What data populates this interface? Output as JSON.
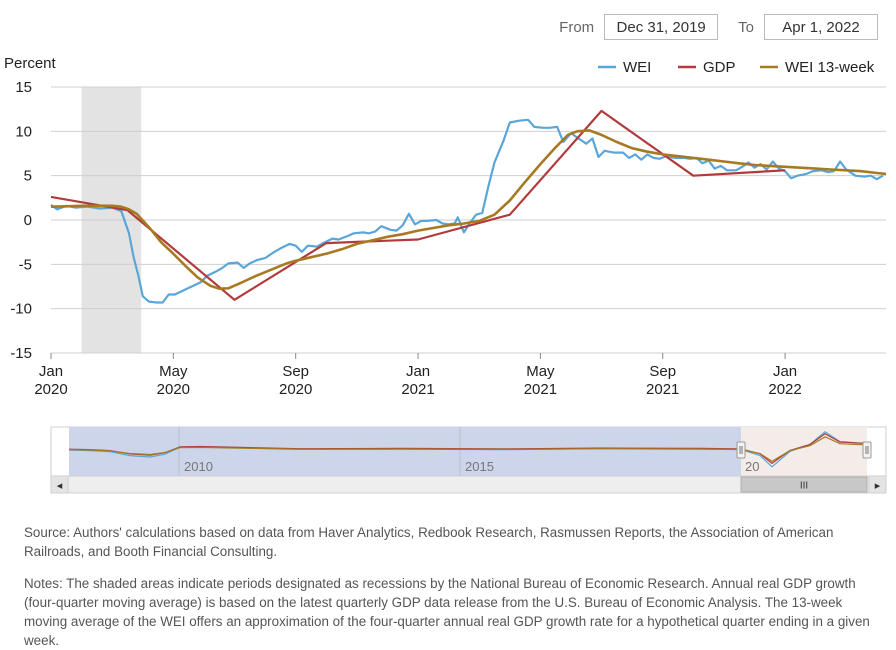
{
  "range_selector": {
    "from_label": "From",
    "from_value": "Dec 31, 2019",
    "to_label": "To",
    "to_value": "Apr 1, 2022"
  },
  "chart_data": {
    "type": "line",
    "ylabel": "Percent",
    "ylim": [
      -15,
      15
    ],
    "y_ticks": [
      "15",
      "10",
      "5",
      "0",
      "-5",
      "-10",
      "-15"
    ],
    "x_ticks": [
      {
        "month": 0,
        "line1": "Jan",
        "line2": "2020"
      },
      {
        "month": 4,
        "line1": "May",
        "line2": "2020"
      },
      {
        "month": 8,
        "line1": "Sep",
        "line2": "2020"
      },
      {
        "month": 12,
        "line1": "Jan",
        "line2": "2021"
      },
      {
        "month": 16,
        "line1": "May",
        "line2": "2021"
      },
      {
        "month": 20,
        "line1": "Sep",
        "line2": "2021"
      },
      {
        "month": 24,
        "line1": "Jan",
        "line2": "2022"
      }
    ],
    "recession_shading": {
      "start_month": 1.0,
      "end_month": 2.95
    },
    "grid": "horizontal",
    "legend_position": "top-right",
    "series": [
      {
        "name": "WEI",
        "color": "#5aa6d8",
        "width": 2.2,
        "points": [
          [
            0,
            1.7
          ],
          [
            0.2,
            1.2
          ],
          [
            0.5,
            1.6
          ],
          [
            0.8,
            1.4
          ],
          [
            1.2,
            1.5
          ],
          [
            1.6,
            1.3
          ],
          [
            2.0,
            1.4
          ],
          [
            2.3,
            1.0
          ],
          [
            2.55,
            -1.5
          ],
          [
            2.7,
            -4.2
          ],
          [
            2.85,
            -6.2
          ],
          [
            3.0,
            -8.6
          ],
          [
            3.2,
            -9.2
          ],
          [
            3.45,
            -9.3
          ],
          [
            3.65,
            -9.3
          ],
          [
            3.85,
            -8.4
          ],
          [
            4.05,
            -8.4
          ],
          [
            4.3,
            -8.0
          ],
          [
            4.6,
            -7.5
          ],
          [
            4.9,
            -7.0
          ],
          [
            5.1,
            -6.3
          ],
          [
            5.4,
            -5.8
          ],
          [
            5.6,
            -5.4
          ],
          [
            5.8,
            -4.9
          ],
          [
            6.1,
            -4.8
          ],
          [
            6.3,
            -5.4
          ],
          [
            6.5,
            -4.9
          ],
          [
            6.75,
            -4.5
          ],
          [
            7.0,
            -4.3
          ],
          [
            7.3,
            -3.6
          ],
          [
            7.5,
            -3.2
          ],
          [
            7.8,
            -2.7
          ],
          [
            8.0,
            -2.9
          ],
          [
            8.2,
            -3.6
          ],
          [
            8.4,
            -2.9
          ],
          [
            8.7,
            -3.0
          ],
          [
            8.9,
            -2.6
          ],
          [
            9.2,
            -2.1
          ],
          [
            9.4,
            -2.2
          ],
          [
            9.7,
            -1.8
          ],
          [
            9.9,
            -1.5
          ],
          [
            10.2,
            -1.4
          ],
          [
            10.4,
            -1.5
          ],
          [
            10.6,
            -1.3
          ],
          [
            10.8,
            -0.7
          ],
          [
            11.1,
            -1.1
          ],
          [
            11.3,
            -1.2
          ],
          [
            11.5,
            -0.6
          ],
          [
            11.7,
            0.7
          ],
          [
            11.9,
            -0.5
          ],
          [
            12.1,
            -0.1
          ],
          [
            12.3,
            -0.1
          ],
          [
            12.6,
            0.0
          ],
          [
            12.8,
            -0.4
          ],
          [
            13.0,
            -0.5
          ],
          [
            13.2,
            -0.4
          ],
          [
            13.3,
            0.3
          ],
          [
            13.5,
            -1.4
          ],
          [
            13.7,
            -0.3
          ],
          [
            13.9,
            0.6
          ],
          [
            14.1,
            0.8
          ],
          [
            14.3,
            3.8
          ],
          [
            14.5,
            6.5
          ],
          [
            14.8,
            9.0
          ],
          [
            15.0,
            11.0
          ],
          [
            15.3,
            11.2
          ],
          [
            15.6,
            11.3
          ],
          [
            15.8,
            10.5
          ],
          [
            16.1,
            10.4
          ],
          [
            16.3,
            10.4
          ],
          [
            16.55,
            10.5
          ],
          [
            16.75,
            8.8
          ],
          [
            17.0,
            9.8
          ],
          [
            17.2,
            9.3
          ],
          [
            17.5,
            8.6
          ],
          [
            17.7,
            9.2
          ],
          [
            17.9,
            7.1
          ],
          [
            18.1,
            7.8
          ],
          [
            18.4,
            7.6
          ],
          [
            18.7,
            7.6
          ],
          [
            18.9,
            7.0
          ],
          [
            19.1,
            7.4
          ],
          [
            19.3,
            6.8
          ],
          [
            19.5,
            7.4
          ],
          [
            19.7,
            7.0
          ],
          [
            19.9,
            6.9
          ],
          [
            20.1,
            7.2
          ],
          [
            20.4,
            7.0
          ],
          [
            20.7,
            7.0
          ],
          [
            20.9,
            6.9
          ],
          [
            21.1,
            7.0
          ],
          [
            21.3,
            6.4
          ],
          [
            21.5,
            6.7
          ],
          [
            21.7,
            5.8
          ],
          [
            21.9,
            6.1
          ],
          [
            22.1,
            5.6
          ],
          [
            22.4,
            5.6
          ],
          [
            22.6,
            6.0
          ],
          [
            22.8,
            6.5
          ],
          [
            23.0,
            5.9
          ],
          [
            23.2,
            6.3
          ],
          [
            23.4,
            5.7
          ],
          [
            23.6,
            6.6
          ],
          [
            23.8,
            5.8
          ],
          [
            24.0,
            5.5
          ],
          [
            24.2,
            4.7
          ],
          [
            24.4,
            5.0
          ],
          [
            24.7,
            5.2
          ],
          [
            24.9,
            5.5
          ],
          [
            25.2,
            5.6
          ],
          [
            25.4,
            5.4
          ],
          [
            25.6,
            5.5
          ],
          [
            25.8,
            6.6
          ],
          [
            26.0,
            5.7
          ],
          [
            26.3,
            5.0
          ],
          [
            26.6,
            4.9
          ],
          [
            26.8,
            5.0
          ],
          [
            27.0,
            4.6
          ],
          [
            27.2,
            5.0
          ]
        ]
      },
      {
        "name": "GDP",
        "color": "#b23a3c",
        "width": 2.2,
        "points": [
          [
            0,
            2.6
          ],
          [
            2.5,
            1.1
          ],
          [
            6.0,
            -9.0
          ],
          [
            9.0,
            -2.6
          ],
          [
            12.0,
            -2.2
          ],
          [
            15.0,
            0.6
          ],
          [
            18.0,
            12.3
          ],
          [
            21.0,
            5.0
          ],
          [
            24.0,
            5.6
          ]
        ]
      },
      {
        "name": "WEI 13-week",
        "color": "#a77a22",
        "width": 2.6,
        "points": [
          [
            0,
            1.5
          ],
          [
            0.5,
            1.55
          ],
          [
            1.0,
            1.6
          ],
          [
            1.5,
            1.6
          ],
          [
            2.0,
            1.6
          ],
          [
            2.3,
            1.5
          ],
          [
            2.55,
            1.2
          ],
          [
            2.8,
            0.7
          ],
          [
            3.2,
            -0.8
          ],
          [
            3.6,
            -2.5
          ],
          [
            4.0,
            -3.8
          ],
          [
            4.4,
            -5.2
          ],
          [
            4.8,
            -6.5
          ],
          [
            5.2,
            -7.4
          ],
          [
            5.5,
            -7.75
          ],
          [
            5.8,
            -7.7
          ],
          [
            6.2,
            -7.1
          ],
          [
            6.7,
            -6.3
          ],
          [
            7.2,
            -5.6
          ],
          [
            7.7,
            -4.9
          ],
          [
            8.0,
            -4.6
          ],
          [
            8.5,
            -4.2
          ],
          [
            9.0,
            -3.8
          ],
          [
            9.5,
            -3.3
          ],
          [
            10.0,
            -2.7
          ],
          [
            10.5,
            -2.3
          ],
          [
            11.0,
            -1.9
          ],
          [
            11.5,
            -1.6
          ],
          [
            12.0,
            -1.2
          ],
          [
            12.5,
            -0.9
          ],
          [
            13.0,
            -0.6
          ],
          [
            13.5,
            -0.4
          ],
          [
            14.0,
            -0.1
          ],
          [
            14.5,
            0.6
          ],
          [
            15.0,
            2.2
          ],
          [
            15.5,
            4.3
          ],
          [
            16.0,
            6.3
          ],
          [
            16.5,
            8.2
          ],
          [
            16.9,
            9.6
          ],
          [
            17.2,
            10.0
          ],
          [
            17.6,
            10.1
          ],
          [
            18.0,
            9.6
          ],
          [
            18.5,
            8.8
          ],
          [
            19.0,
            8.1
          ],
          [
            19.5,
            7.7
          ],
          [
            20.0,
            7.4
          ],
          [
            20.5,
            7.2
          ],
          [
            21.0,
            7.0
          ],
          [
            21.5,
            6.8
          ],
          [
            22.0,
            6.6
          ],
          [
            22.5,
            6.4
          ],
          [
            23.0,
            6.2
          ],
          [
            23.5,
            6.1
          ],
          [
            24.0,
            6.0
          ],
          [
            24.5,
            5.9
          ],
          [
            25.0,
            5.8
          ],
          [
            25.5,
            5.7
          ],
          [
            26.0,
            5.6
          ],
          [
            26.5,
            5.5
          ],
          [
            27.0,
            5.3
          ],
          [
            27.3,
            5.2
          ]
        ]
      }
    ]
  },
  "navigator": {
    "labels": [
      "2010",
      "2015",
      "20"
    ],
    "scroll_left_arrow": "◂",
    "scroll_right_arrow": "▸",
    "scroll_grip": "III"
  },
  "footer": {
    "source": "Source: Authors' calculations based on data from Haver Analytics, Redbook Research, Rasmussen Reports, the Association of American Railroads, and Booth Financial Consulting.",
    "notes": "Notes: The shaded areas indicate periods designated as recessions by the National Bureau of Economic Research. Annual real GDP growth (four-quarter moving average) is based on the latest quarterly GDP data release from the U.S. Bureau of Economic Analysis. The 13-week moving average of the WEI offers an approximation of the four-quarter annual real GDP growth rate for a hypothetical quarter ending in a given week."
  }
}
